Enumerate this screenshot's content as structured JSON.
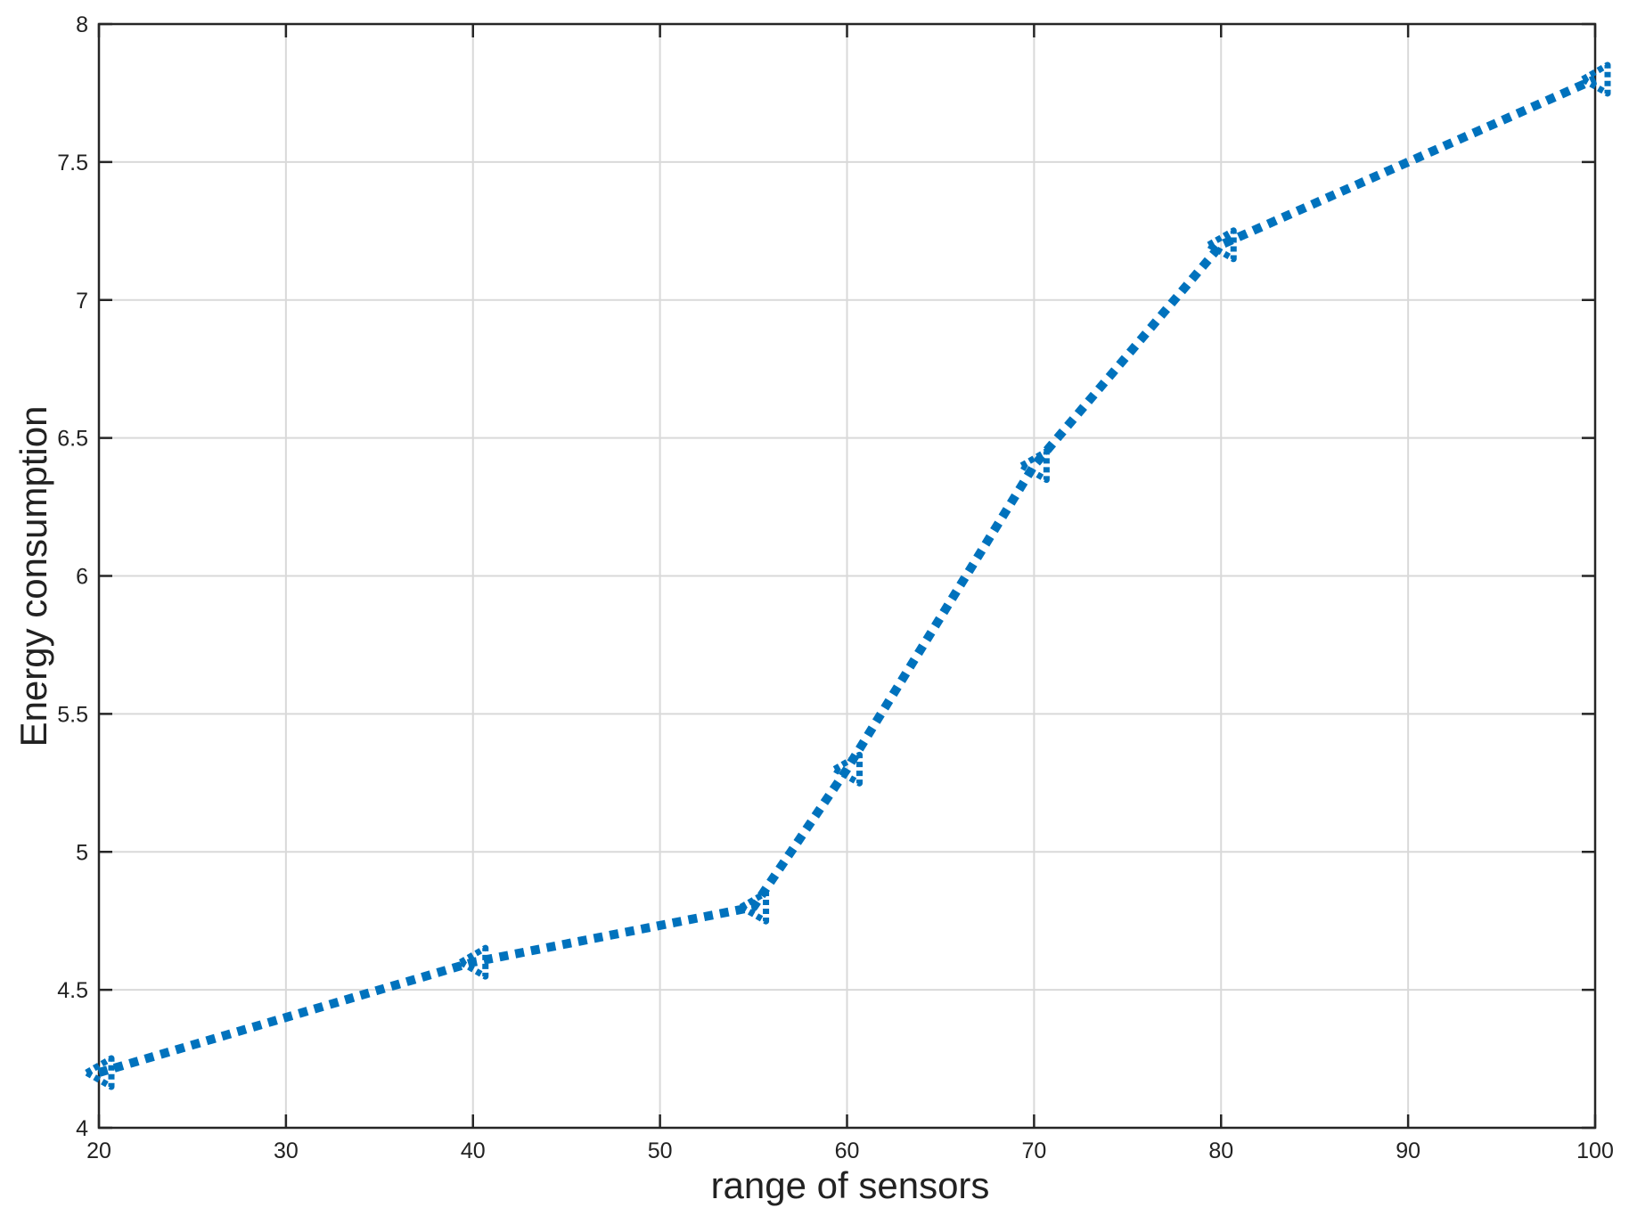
{
  "chart_data": {
    "type": "line",
    "title": "",
    "xlabel": "range of sensors",
    "ylabel": "Energy consumption",
    "xlim": [
      20,
      100
    ],
    "ylim": [
      4,
      8
    ],
    "xticks": [
      20,
      30,
      40,
      50,
      60,
      70,
      80,
      90,
      100
    ],
    "yticks": [
      4,
      4.5,
      5,
      5.5,
      6,
      6.5,
      7,
      7.5,
      8
    ],
    "xtick_labels": [
      "20",
      "30",
      "40",
      "50",
      "60",
      "70",
      "80",
      "90",
      "100"
    ],
    "ytick_labels": [
      "4",
      "4.5",
      "5",
      "5.5",
      "6",
      "6.5",
      "7",
      "7.5",
      "8"
    ],
    "grid": true,
    "legend": "none",
    "series": [
      {
        "x": [
          20,
          40,
          55,
          60,
          70,
          80,
          100
        ],
        "y": [
          4.2,
          4.6,
          4.8,
          5.3,
          6.4,
          7.2,
          7.8
        ],
        "color": "#0072BD",
        "line_style": "dotted",
        "marker": "left-triangle"
      }
    ]
  }
}
